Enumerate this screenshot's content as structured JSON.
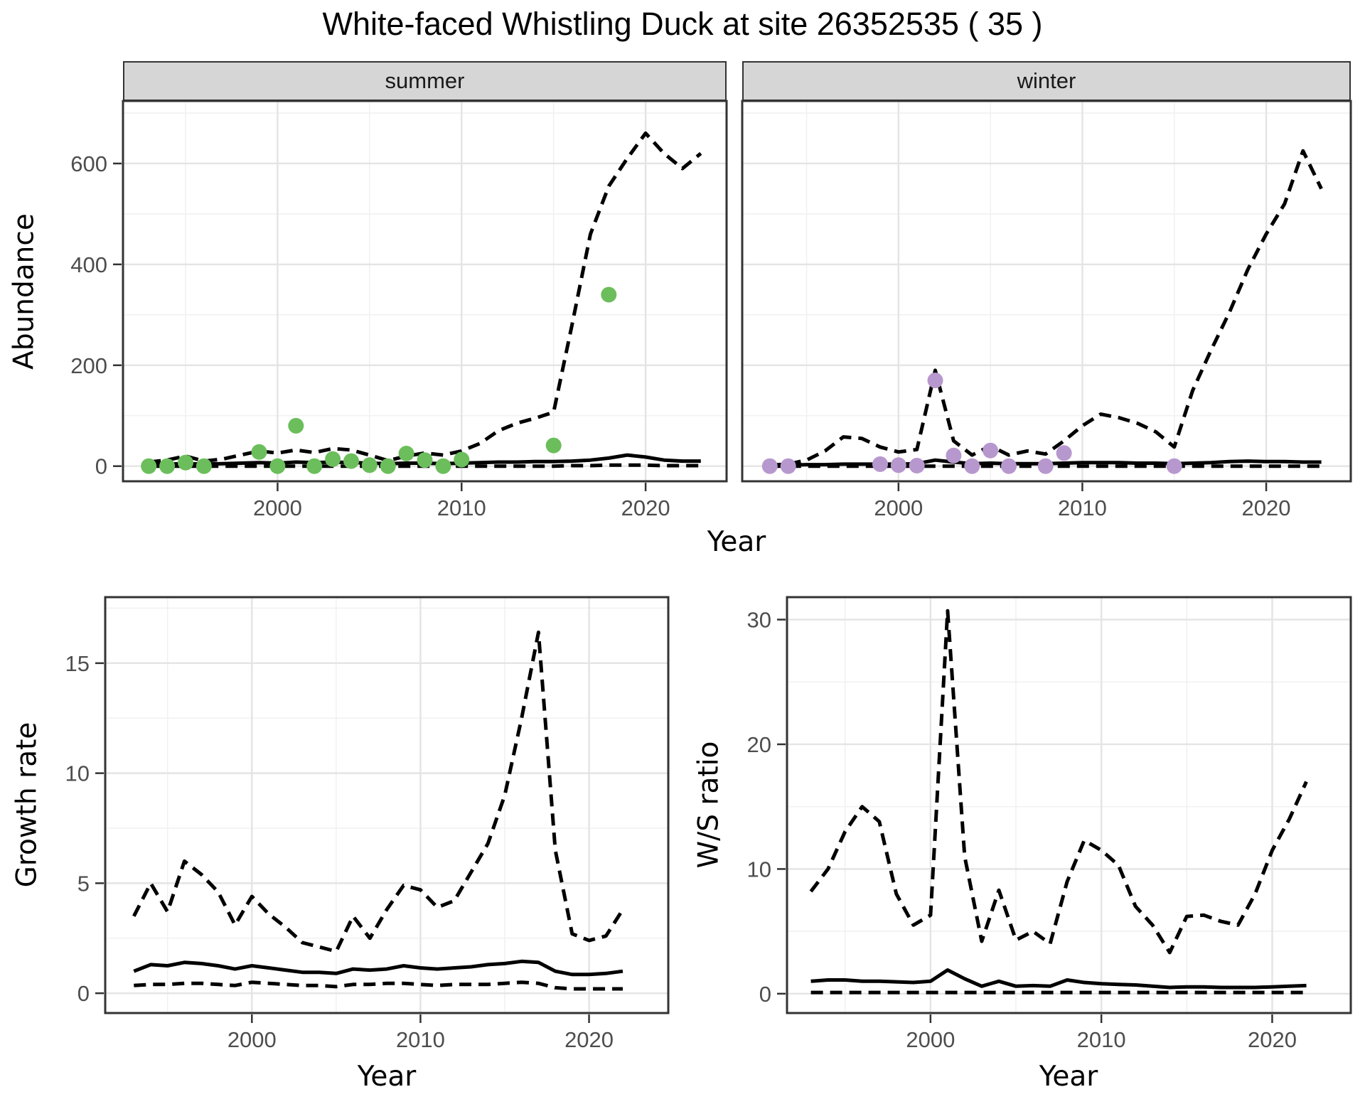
{
  "title": "White-faced Whistling Duck at site 26352535 ( 35 )",
  "facets": {
    "summer": "summer",
    "winter": "winter"
  },
  "axis_titles": {
    "abundance": "Abundance",
    "year": "Year",
    "growth_rate": "Growth rate",
    "ws_ratio": "W/S ratio"
  },
  "colors": {
    "summer_point": "#6BBE5B",
    "winter_point": "#B798CE",
    "line": "#000000",
    "panel_border": "#333333",
    "grid_major": "#E4E4E4",
    "grid_minor": "#F1F1F1",
    "tick_text": "#4D4D4D",
    "strip_bg": "#D6D6D6"
  },
  "chart_data": [
    {
      "id": "abundance-summer",
      "type": "line",
      "facet_label": "summer",
      "title": "",
      "xlabel": "Year",
      "ylabel": "Abundance",
      "xlim": [
        1991.6,
        2024.4
      ],
      "ylim": [
        -30,
        724
      ],
      "x_ticks": [
        2000,
        2010,
        2020
      ],
      "x_minor": [
        1995,
        2005,
        2015
      ],
      "y_ticks": [
        0,
        200,
        400,
        600
      ],
      "y_minor": [
        100,
        300,
        500,
        700
      ],
      "grid": true,
      "legend": "none",
      "x": [
        1993,
        1994,
        1995,
        1996,
        1997,
        1998,
        1999,
        2000,
        2001,
        2002,
        2003,
        2004,
        2005,
        2006,
        2007,
        2008,
        2009,
        2010,
        2011,
        2012,
        2013,
        2014,
        2015,
        2016,
        2017,
        2018,
        2019,
        2020,
        2021,
        2022,
        2023
      ],
      "series": [
        {
          "name": "upper_95ci",
          "style": "dashed",
          "y": [
            8,
            12,
            20,
            10,
            14,
            22,
            30,
            26,
            32,
            27,
            35,
            32,
            22,
            11,
            20,
            26,
            22,
            30,
            45,
            70,
            85,
            95,
            107,
            280,
            460,
            555,
            610,
            660,
            620,
            590,
            620
          ]
        },
        {
          "name": "median",
          "style": "solid",
          "y": [
            3,
            4,
            5,
            4,
            5,
            6,
            7,
            6,
            8,
            7,
            8,
            7,
            6,
            5,
            6,
            6,
            5,
            6,
            7,
            8,
            8,
            9,
            9,
            10,
            12,
            16,
            22,
            18,
            12,
            10,
            10
          ]
        },
        {
          "name": "lower_95ci",
          "style": "dashed",
          "y": [
            0,
            0,
            0,
            0,
            0,
            0,
            0,
            0,
            0,
            0,
            0,
            0,
            0,
            0,
            0,
            0,
            0,
            0,
            0,
            0,
            0,
            0,
            0,
            1,
            1,
            2,
            2,
            2,
            1,
            1,
            1
          ]
        }
      ],
      "points": {
        "name": "observed-counts-summer",
        "color": "#6BBE5B",
        "x": [
          1993,
          1994,
          1995,
          1996,
          1999,
          2000,
          2001,
          2002,
          2003,
          2004,
          2005,
          2006,
          2007,
          2008,
          2009,
          2010,
          2015,
          2018
        ],
        "y": [
          0,
          0,
          7,
          0,
          28,
          0,
          80,
          0,
          14,
          10,
          2,
          0,
          25,
          12,
          0,
          13,
          41,
          340
        ]
      }
    },
    {
      "id": "abundance-winter",
      "type": "line",
      "facet_label": "winter",
      "title": "",
      "xlabel": "Year",
      "ylabel": "Abundance",
      "xlim": [
        1991.5,
        2024.6
      ],
      "ylim": [
        -30,
        724
      ],
      "x_ticks": [
        2000,
        2010,
        2020
      ],
      "x_minor": [
        1995,
        2005,
        2015
      ],
      "y_ticks": [
        0,
        200,
        400,
        600
      ],
      "y_minor": [
        100,
        300,
        500,
        700
      ],
      "grid": true,
      "legend": "none",
      "x": [
        1993,
        1994,
        1995,
        1996,
        1997,
        1998,
        1999,
        2000,
        2001,
        2002,
        2003,
        2004,
        2005,
        2006,
        2007,
        2008,
        2009,
        2010,
        2011,
        2012,
        2013,
        2014,
        2015,
        2016,
        2017,
        2018,
        2019,
        2020,
        2021,
        2022,
        2023
      ],
      "series": [
        {
          "name": "upper_95ci",
          "style": "dashed",
          "y": [
            2,
            4,
            12,
            30,
            58,
            55,
            38,
            28,
            33,
            190,
            50,
            22,
            40,
            22,
            30,
            24,
            50,
            80,
            103,
            96,
            85,
            68,
            38,
            150,
            230,
            305,
            390,
            460,
            520,
            625,
            550
          ]
        },
        {
          "name": "median",
          "style": "solid",
          "y": [
            2,
            2,
            3,
            3,
            4,
            4,
            4,
            4,
            5,
            12,
            8,
            5,
            6,
            5,
            5,
            5,
            6,
            7,
            7,
            7,
            6,
            6,
            5,
            6,
            7,
            9,
            10,
            9,
            9,
            8,
            8
          ]
        },
        {
          "name": "lower_95ci",
          "style": "dashed",
          "y": [
            0,
            0,
            0,
            0,
            0,
            0,
            0,
            0,
            0,
            0,
            0,
            0,
            0,
            0,
            0,
            0,
            0,
            0,
            0,
            0,
            0,
            0,
            0,
            0,
            0,
            0,
            0,
            0,
            0,
            0,
            0
          ]
        }
      ],
      "points": {
        "name": "observed-counts-winter",
        "color": "#B798CE",
        "x": [
          1993,
          1994,
          1999,
          2000,
          2001,
          2002,
          2003,
          2004,
          2005,
          2006,
          2008,
          2009,
          2015
        ],
        "y": [
          0,
          0,
          4,
          2,
          1,
          170,
          21,
          0,
          31,
          0,
          0,
          26,
          0
        ]
      }
    },
    {
      "id": "growth-rate",
      "type": "line",
      "facet_label": "",
      "title": "",
      "xlabel": "Year",
      "ylabel": "Growth rate",
      "xlim": [
        1991.3,
        2024.7
      ],
      "ylim": [
        -0.9,
        18.0
      ],
      "x_ticks": [
        2000,
        2010,
        2020
      ],
      "x_minor": [
        1995,
        2005,
        2015
      ],
      "y_ticks": [
        0,
        5,
        10,
        15
      ],
      "y_minor": [
        2.5,
        7.5,
        12.5,
        17.5
      ],
      "grid": true,
      "legend": "none",
      "x": [
        1993,
        1994,
        1995,
        1996,
        1997,
        1998,
        1999,
        2000,
        2001,
        2002,
        2003,
        2004,
        2005,
        2006,
        2007,
        2008,
        2009,
        2010,
        2011,
        2012,
        2013,
        2014,
        2015,
        2016,
        2017,
        2018,
        2019,
        2020,
        2021,
        2022
      ],
      "series": [
        {
          "name": "upper_95ci",
          "style": "dashed",
          "y": [
            3.5,
            5.0,
            3.7,
            6.0,
            5.4,
            4.6,
            3.1,
            4.4,
            3.6,
            3.0,
            2.3,
            2.1,
            1.9,
            3.5,
            2.5,
            3.8,
            4.9,
            4.7,
            3.9,
            4.2,
            5.5,
            6.8,
            9.0,
            12.5,
            16.4,
            6.5,
            2.7,
            2.4,
            2.6,
            3.8
          ]
        },
        {
          "name": "median",
          "style": "solid",
          "y": [
            1.0,
            1.3,
            1.25,
            1.4,
            1.35,
            1.25,
            1.1,
            1.25,
            1.15,
            1.05,
            0.95,
            0.95,
            0.9,
            1.1,
            1.05,
            1.1,
            1.25,
            1.15,
            1.1,
            1.15,
            1.2,
            1.3,
            1.35,
            1.45,
            1.4,
            1.0,
            0.85,
            0.85,
            0.9,
            1.0
          ]
        },
        {
          "name": "lower_95ci",
          "style": "dashed",
          "y": [
            0.35,
            0.4,
            0.4,
            0.45,
            0.45,
            0.4,
            0.35,
            0.5,
            0.45,
            0.4,
            0.35,
            0.35,
            0.3,
            0.4,
            0.4,
            0.45,
            0.45,
            0.4,
            0.35,
            0.4,
            0.4,
            0.4,
            0.45,
            0.5,
            0.45,
            0.25,
            0.2,
            0.2,
            0.2,
            0.2
          ]
        }
      ],
      "points": null
    },
    {
      "id": "ws-ratio",
      "type": "line",
      "facet_label": "",
      "title": "",
      "xlabel": "Year",
      "ylabel": "W/S ratio",
      "xlim": [
        1991.6,
        2024.6
      ],
      "ylim": [
        -1.55,
        31.8
      ],
      "x_ticks": [
        2000,
        2010,
        2020
      ],
      "x_minor": [
        1995,
        2005,
        2015
      ],
      "y_ticks": [
        0,
        10,
        20,
        30
      ],
      "y_minor": [
        5,
        15,
        25
      ],
      "grid": true,
      "legend": "none",
      "x": [
        1993,
        1994,
        1995,
        1996,
        1997,
        1998,
        1999,
        2000,
        2001,
        2002,
        2003,
        2004,
        2005,
        2006,
        2007,
        2008,
        2009,
        2010,
        2011,
        2012,
        2013,
        2014,
        2015,
        2016,
        2017,
        2018,
        2019,
        2020,
        2021,
        2022
      ],
      "series": [
        {
          "name": "upper_95ci",
          "style": "dashed",
          "y": [
            8.2,
            10.0,
            13.0,
            15.0,
            13.8,
            8.0,
            5.5,
            6.3,
            30.7,
            11.0,
            4.2,
            8.3,
            4.3,
            5.0,
            4.0,
            9.0,
            12.3,
            11.5,
            10.3,
            7.0,
            5.5,
            3.3,
            6.2,
            6.3,
            5.8,
            5.5,
            8.0,
            11.5,
            14.0,
            17.0
          ]
        },
        {
          "name": "median",
          "style": "solid",
          "y": [
            1.0,
            1.1,
            1.1,
            1.0,
            1.0,
            0.95,
            0.9,
            1.0,
            1.9,
            1.2,
            0.6,
            1.0,
            0.6,
            0.65,
            0.6,
            1.1,
            0.9,
            0.8,
            0.75,
            0.7,
            0.6,
            0.5,
            0.55,
            0.55,
            0.5,
            0.5,
            0.5,
            0.55,
            0.6,
            0.65
          ]
        },
        {
          "name": "lower_95ci",
          "style": "dashed",
          "y": [
            0.1,
            0.1,
            0.1,
            0.1,
            0.1,
            0.1,
            0.1,
            0.1,
            0.1,
            0.1,
            0.1,
            0.1,
            0.1,
            0.1,
            0.1,
            0.1,
            0.1,
            0.1,
            0.1,
            0.1,
            0.1,
            0.1,
            0.1,
            0.1,
            0.1,
            0.1,
            0.1,
            0.1,
            0.1,
            0.1
          ]
        }
      ],
      "points": null
    }
  ]
}
